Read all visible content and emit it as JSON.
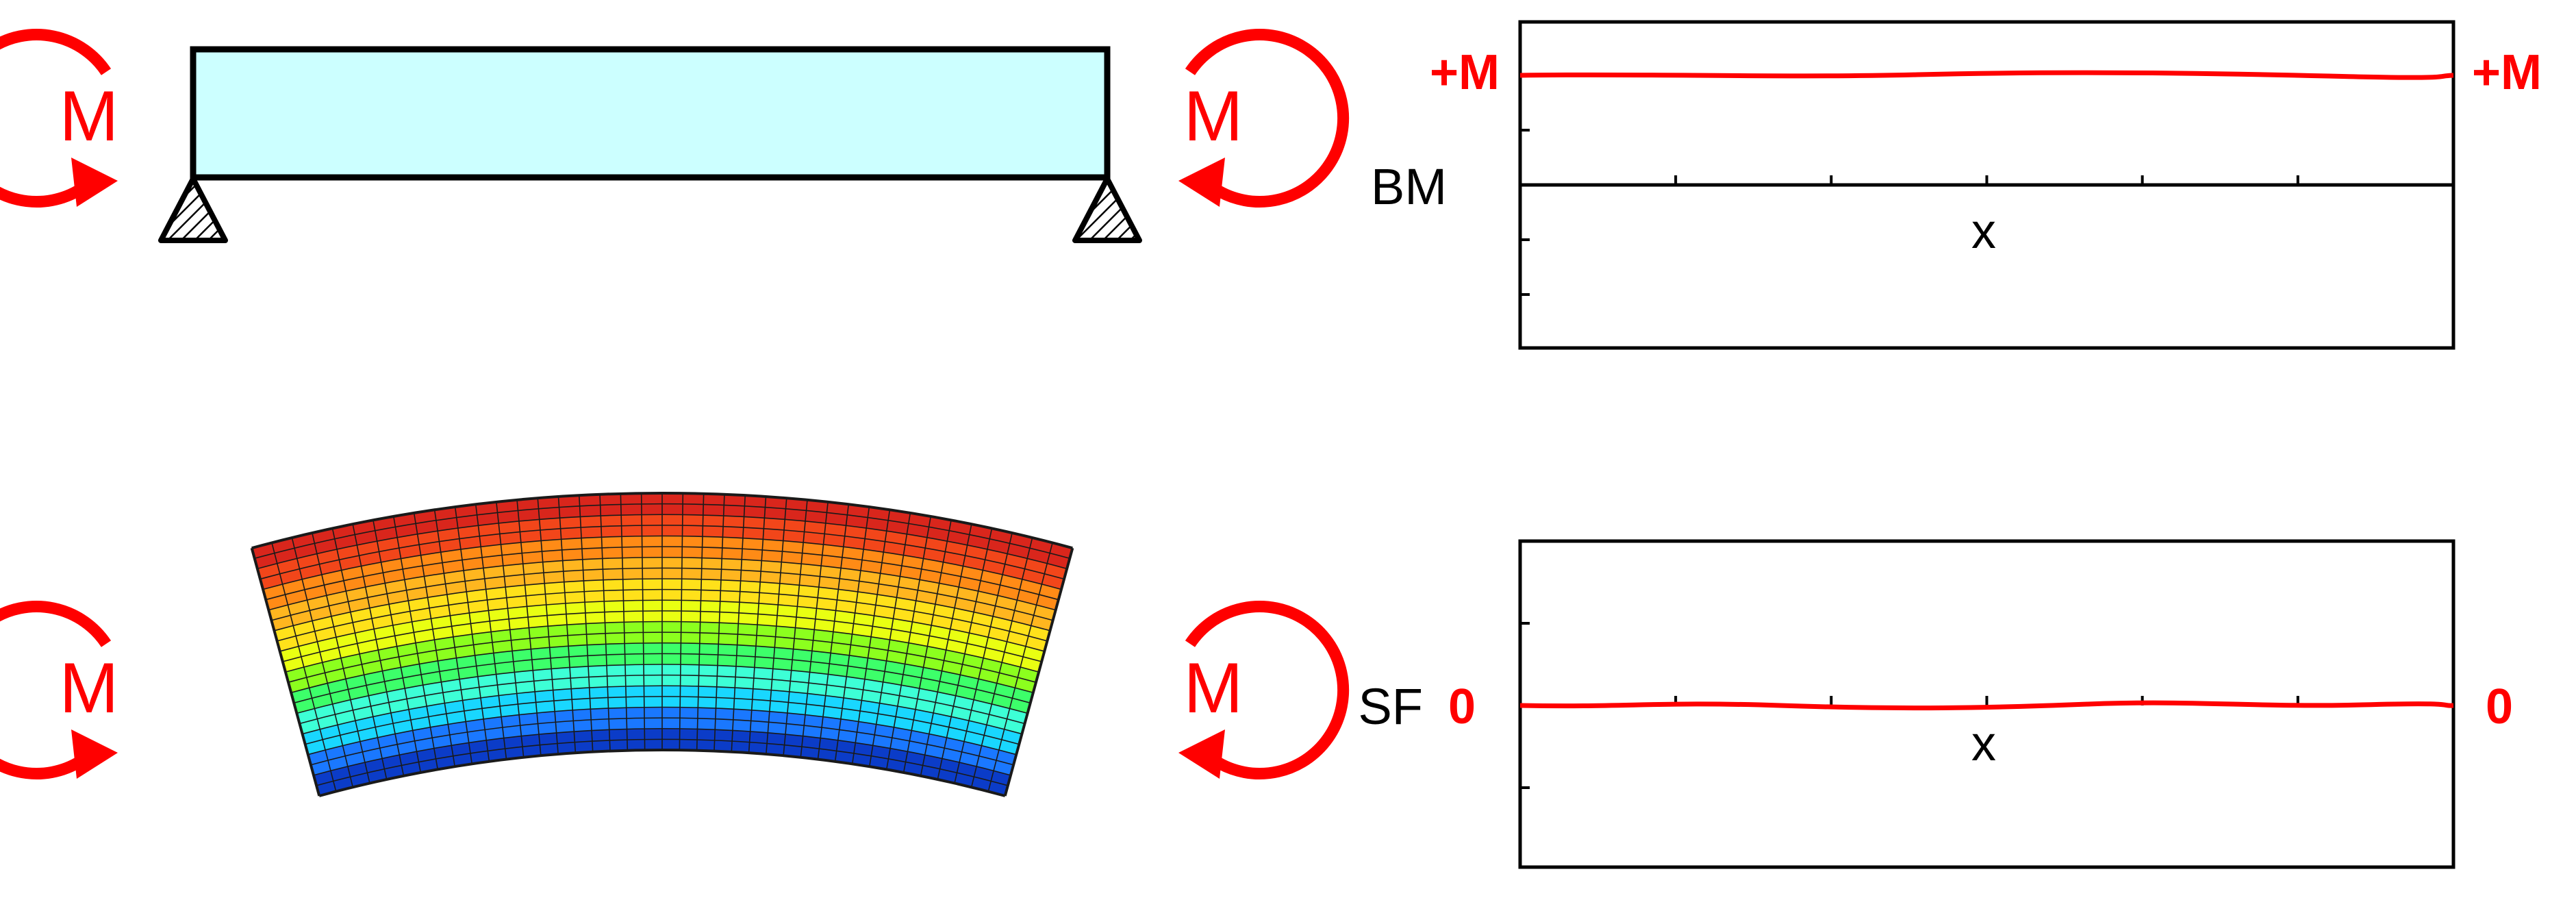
{
  "moment_symbol": "M",
  "plots": {
    "bending_moment": {
      "label": "BM",
      "x_label": "x",
      "left_end_value": "+M",
      "right_end_value": "+M",
      "value": 1
    },
    "shear_force": {
      "label": "SF",
      "x_label": "x",
      "left_end_value": "0",
      "right_end_value": "0",
      "value": 0
    }
  },
  "colors": {
    "moment_arrow": "#ff0000",
    "beam_fill": "#ccffff",
    "plot_line": "#ff0000",
    "outline": "#000000"
  },
  "contour_colors": [
    "#0b3cc8",
    "#1a78ff",
    "#19d7ff",
    "#3dffd6",
    "#3dff6a",
    "#8cff1e",
    "#e9ff12",
    "#ffe11a",
    "#ffb61f",
    "#ff8b16",
    "#f2461a",
    "#d9261c"
  ]
}
